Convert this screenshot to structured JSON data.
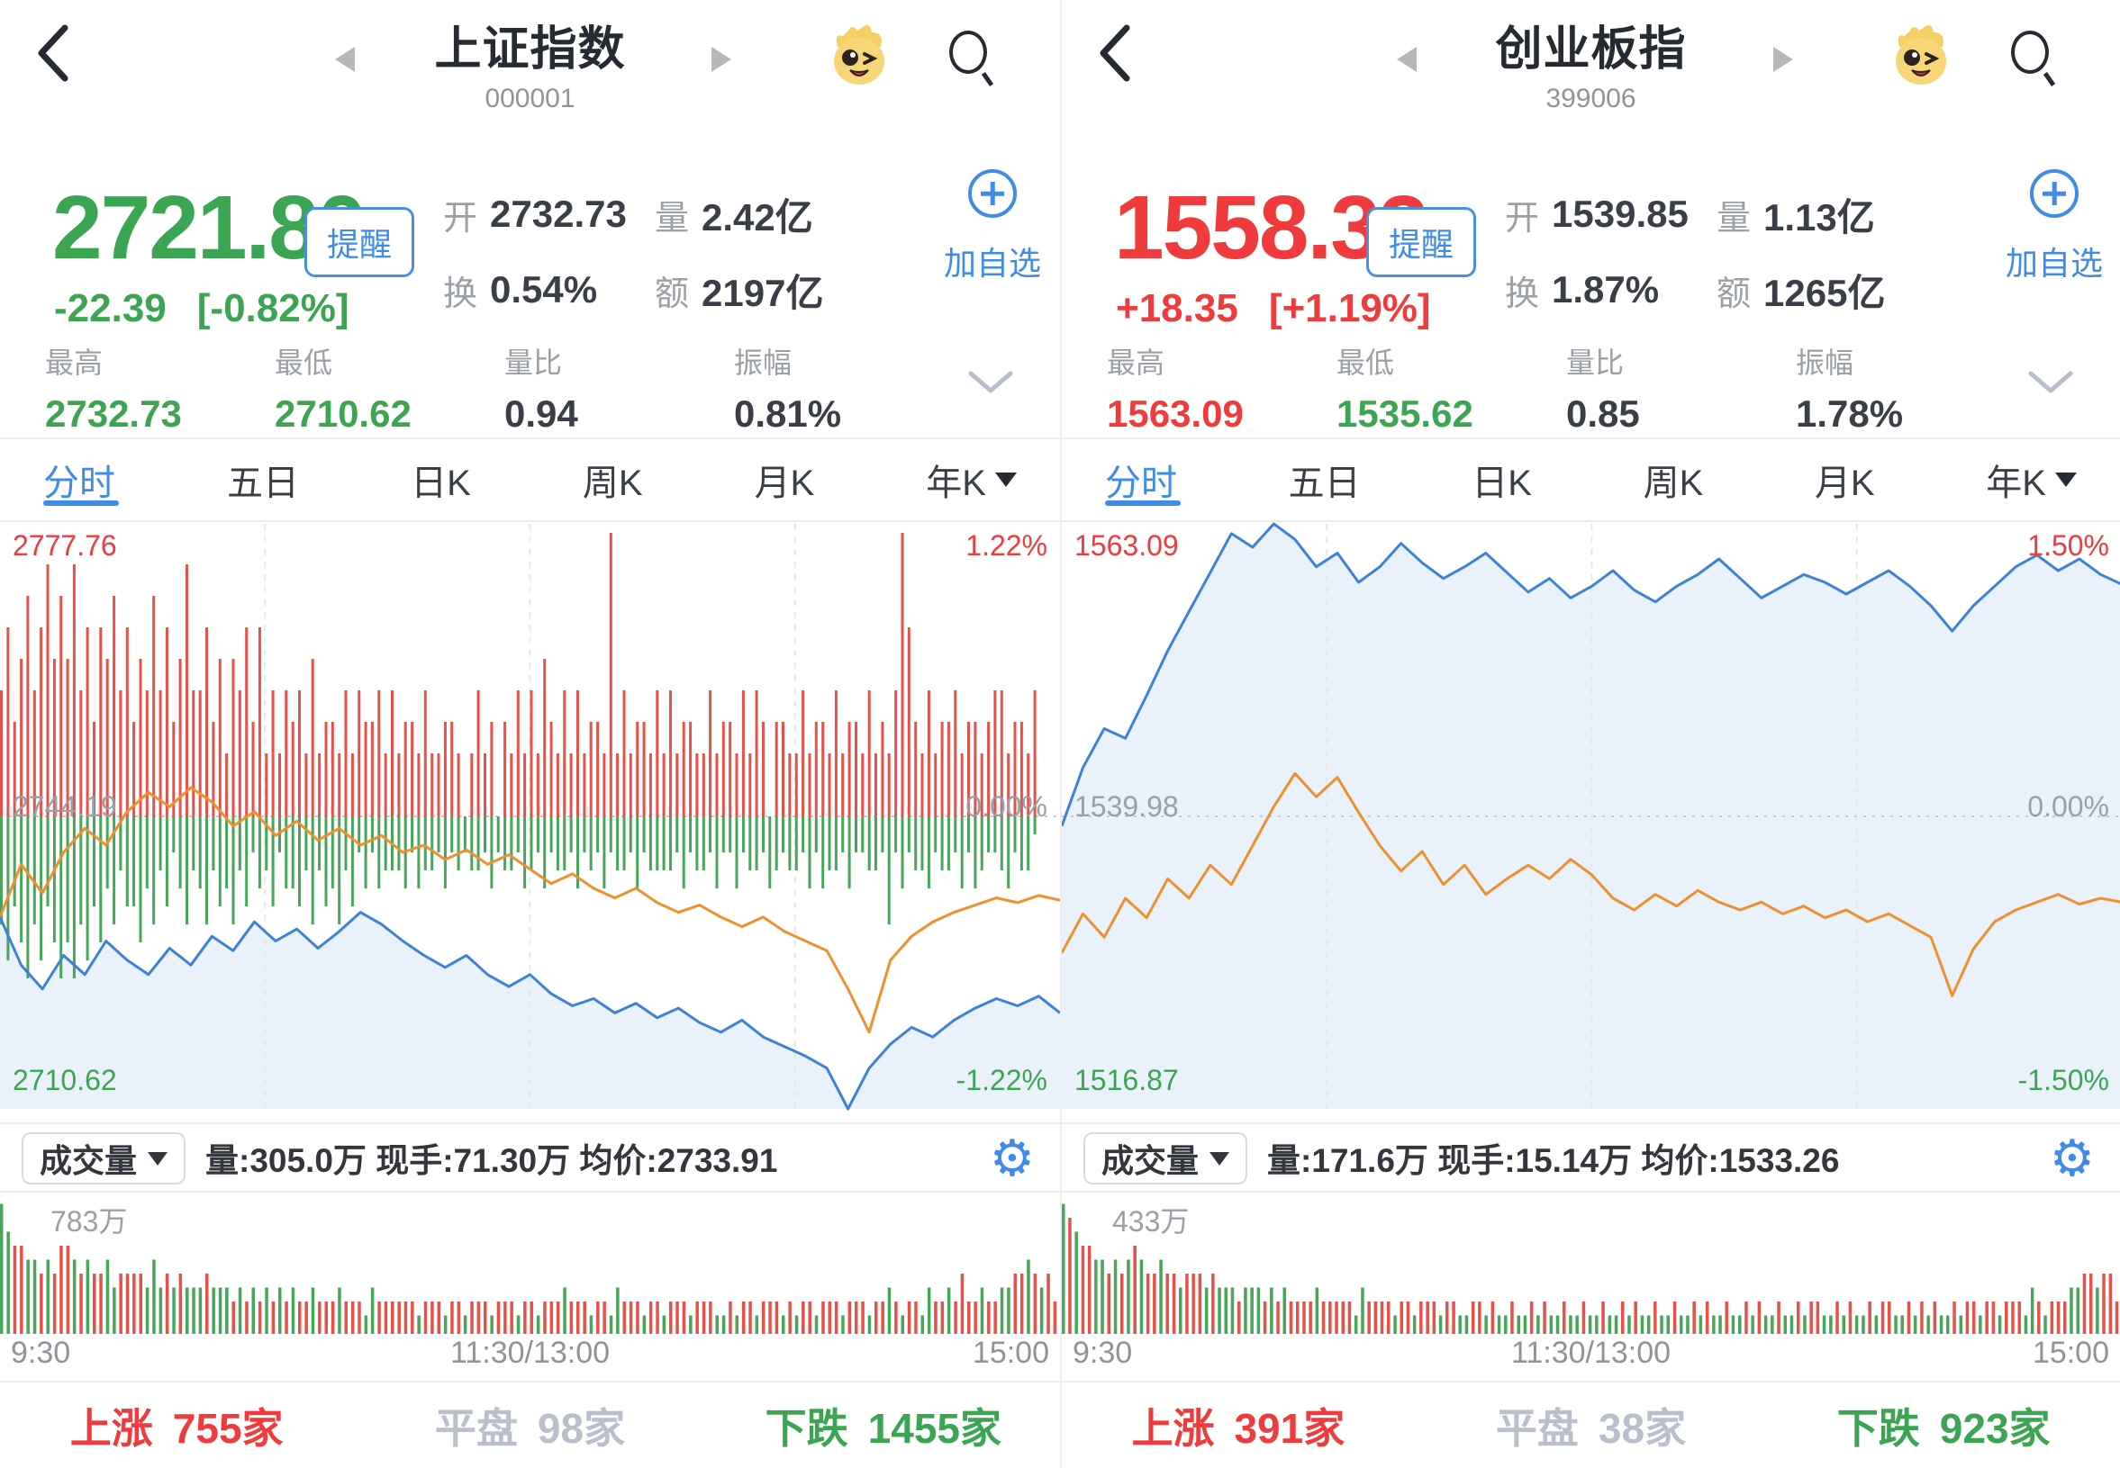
{
  "panels": [
    {
      "header": {
        "title": "上证指数",
        "code": "000001"
      },
      "icons": {
        "back": "back-chevron",
        "mascot": "mascot",
        "search": "search"
      },
      "quote": {
        "price": "2721.80",
        "color": "green",
        "alert_label": "提醒",
        "change": "-22.39",
        "change_pct": "[-0.82%]",
        "stats": [
          {
            "label": "开",
            "value": "2732.73",
            "color": "green"
          },
          {
            "label": "量",
            "value": "2.42亿",
            "color": "dark"
          },
          {
            "label": "换",
            "value": "0.54%",
            "color": "dark"
          },
          {
            "label": "额",
            "value": "2197亿",
            "color": "dark"
          }
        ],
        "add_watch_label": "加自选"
      },
      "range_stats": [
        {
          "label": "最高",
          "value": "2732.73",
          "color": "green"
        },
        {
          "label": "最低",
          "value": "2710.62",
          "color": "green"
        },
        {
          "label": "量比",
          "value": "0.94",
          "color": "dark"
        },
        {
          "label": "振幅",
          "value": "0.81%",
          "color": "dark"
        }
      ],
      "tabs": {
        "t0": "分时",
        "t1": "五日",
        "t2": "日K",
        "t3": "周K",
        "t4": "月K",
        "t5": "年K"
      },
      "chart": {
        "top_label": "2777.76",
        "top_pct": "1.22%",
        "mid_label": "2744.19",
        "mid_pct": "0.00%",
        "bottom_label": "2710.62",
        "bottom_pct": "-1.22%",
        "pct_range": 1.22,
        "blue": [
          -0.42,
          -0.62,
          -0.72,
          -0.58,
          -0.66,
          -0.52,
          -0.6,
          -0.66,
          -0.55,
          -0.62,
          -0.5,
          -0.56,
          -0.44,
          -0.52,
          -0.47,
          -0.55,
          -0.48,
          -0.4,
          -0.45,
          -0.52,
          -0.58,
          -0.63,
          -0.58,
          -0.66,
          -0.71,
          -0.66,
          -0.74,
          -0.79,
          -0.76,
          -0.82,
          -0.78,
          -0.84,
          -0.8,
          -0.86,
          -0.9,
          -0.85,
          -0.92,
          -0.96,
          -1.0,
          -1.05,
          -1.22,
          -1.05,
          -0.95,
          -0.88,
          -0.92,
          -0.85,
          -0.8,
          -0.76,
          -0.79,
          -0.75,
          -0.82
        ],
        "orange": [
          -0.42,
          -0.2,
          -0.32,
          -0.15,
          -0.05,
          -0.12,
          0.02,
          0.1,
          0.04,
          0.12,
          0.06,
          -0.04,
          0.02,
          -0.08,
          -0.02,
          -0.1,
          -0.05,
          -0.12,
          -0.08,
          -0.15,
          -0.12,
          -0.18,
          -0.14,
          -0.2,
          -0.16,
          -0.22,
          -0.28,
          -0.24,
          -0.3,
          -0.34,
          -0.3,
          -0.36,
          -0.4,
          -0.37,
          -0.42,
          -0.46,
          -0.42,
          -0.48,
          -0.52,
          -0.56,
          -0.72,
          -0.9,
          -0.6,
          -0.5,
          -0.44,
          -0.4,
          -0.37,
          -0.34,
          -0.36,
          -0.33,
          -0.35
        ],
        "up_bars": "4635746857584636574635474635844635254636242434252332424334242332422332024230324242532424233292423324242332242332424303322423324233242324963242334233234423324",
        "down_bars": "6857968579796857463557463524634635463524352445363546352424333424332423233242332432423324232423324233332423324224233243233242433242233262423342332424322342331"
      },
      "volume_bar": {
        "selector_label": "成交量",
        "info": "量:305.0万 现手:71.30万 均价:2733.91",
        "gear": "⚙"
      },
      "volume_chart": {
        "max_label": "783万",
        "profile": "9766554546654544534444353434333433323232323232232223222132222221222122122212221221222322212213222122122212221121221222121221222122212232122132232422322334454342"
      },
      "time_axis": {
        "t0": "9:30",
        "t1": "11:30/13:00",
        "t2": "15:00"
      },
      "breadth": {
        "up_label": "上涨",
        "up_value": "755家",
        "flat_label": "平盘",
        "flat_value": "98家",
        "down_label": "下跌",
        "down_value": "1455家"
      }
    },
    {
      "header": {
        "title": "创业板指",
        "code": "399006"
      },
      "icons": {
        "back": "back-chevron",
        "mascot": "mascot",
        "search": "search"
      },
      "quote": {
        "price": "1558.33",
        "color": "red",
        "alert_label": "提醒",
        "change": "+18.35",
        "change_pct": "[+1.19%]",
        "stats": [
          {
            "label": "开",
            "value": "1539.85",
            "color": "green"
          },
          {
            "label": "量",
            "value": "1.13亿",
            "color": "dark"
          },
          {
            "label": "换",
            "value": "1.87%",
            "color": "dark"
          },
          {
            "label": "额",
            "value": "1265亿",
            "color": "dark"
          }
        ],
        "add_watch_label": "加自选"
      },
      "range_stats": [
        {
          "label": "最高",
          "value": "1563.09",
          "color": "red"
        },
        {
          "label": "最低",
          "value": "1535.62",
          "color": "green"
        },
        {
          "label": "量比",
          "value": "0.85",
          "color": "dark"
        },
        {
          "label": "振幅",
          "value": "1.78%",
          "color": "dark"
        }
      ],
      "tabs": {
        "t0": "分时",
        "t1": "五日",
        "t2": "日K",
        "t3": "周K",
        "t4": "月K",
        "t5": "年K"
      },
      "chart": {
        "top_label": "1563.09",
        "top_pct": "1.50%",
        "mid_label": "1539.98",
        "mid_pct": "0.00%",
        "bottom_label": "1516.87",
        "bottom_pct": "-1.50%",
        "pct_range": 1.5,
        "blue": [
          -0.05,
          0.25,
          0.45,
          0.4,
          0.62,
          0.85,
          1.05,
          1.25,
          1.45,
          1.38,
          1.5,
          1.42,
          1.28,
          1.35,
          1.2,
          1.28,
          1.4,
          1.3,
          1.22,
          1.28,
          1.35,
          1.25,
          1.15,
          1.22,
          1.12,
          1.18,
          1.26,
          1.16,
          1.1,
          1.18,
          1.24,
          1.32,
          1.22,
          1.12,
          1.18,
          1.24,
          1.2,
          1.14,
          1.2,
          1.26,
          1.18,
          1.08,
          0.95,
          1.08,
          1.18,
          1.28,
          1.34,
          1.26,
          1.32,
          1.24,
          1.19
        ],
        "orange": [
          -0.7,
          -0.5,
          -0.62,
          -0.42,
          -0.52,
          -0.32,
          -0.42,
          -0.25,
          -0.35,
          -0.15,
          0.05,
          0.22,
          0.1,
          0.2,
          0.02,
          -0.15,
          -0.28,
          -0.18,
          -0.35,
          -0.25,
          -0.4,
          -0.32,
          -0.25,
          -0.32,
          -0.22,
          -0.3,
          -0.42,
          -0.48,
          -0.4,
          -0.46,
          -0.38,
          -0.44,
          -0.48,
          -0.44,
          -0.5,
          -0.46,
          -0.52,
          -0.48,
          -0.54,
          -0.5,
          -0.56,
          -0.62,
          -0.92,
          -0.68,
          -0.54,
          -0.48,
          -0.44,
          -0.4,
          -0.45,
          -0.42,
          -0.44
        ],
        "up_bars": "",
        "down_bars": ""
      },
      "volume_bar": {
        "selector_label": "成交量",
        "info": "量:171.6万 现手:15.14万 均价:1533.26",
        "gear": "⚙"
      },
      "volume_chart": {
        "max_label": "433万",
        "profile": "9876655454565445443444343332333232322223222221322221221222122112212112112121121121121121211211211212112112121121121221121211212211212121121221221222132122233443442"
      },
      "time_axis": {
        "t0": "9:30",
        "t1": "11:30/13:00",
        "t2": "15:00"
      },
      "breadth": {
        "up_label": "上涨",
        "up_value": "391家",
        "flat_label": "平盘",
        "flat_value": "38家",
        "down_label": "下跌",
        "down_value": "923家"
      }
    }
  ],
  "colors": {
    "up_red": "#ef3b3b",
    "down_green": "#3ba552",
    "line_blue": "#3b82d8",
    "line_orange": "#f08f2e",
    "fill_blue": "#e9f2fb",
    "bar_red": "#e5524a",
    "bar_green": "#47a65a",
    "accent_blue": "#3f8ce8"
  }
}
